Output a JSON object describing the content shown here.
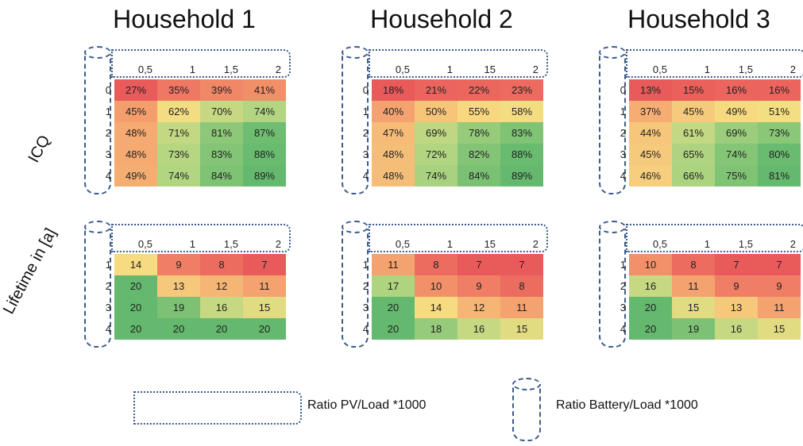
{
  "households": [
    {
      "title": "Household 1"
    },
    {
      "title": "Household 2"
    },
    {
      "title": "Household 3"
    }
  ],
  "row_titles": {
    "icq": "ICQ",
    "lifetime": "Lifetime in [a]"
  },
  "legend": {
    "pv_label": "Ratio PV/Load *1000",
    "battery_label": "Ratio Battery/Load *1000"
  },
  "chart_data": [
    {
      "type": "heatmap",
      "metric": "ICQ",
      "household": "Household 1",
      "columns": [
        "0,5",
        "1",
        "1,5",
        "2"
      ],
      "rows": [
        "0",
        "1",
        "2",
        "3",
        "4"
      ],
      "values": [
        [
          27,
          35,
          39,
          41
        ],
        [
          45,
          62,
          70,
          74
        ],
        [
          48,
          71,
          81,
          87
        ],
        [
          48,
          73,
          83,
          88
        ],
        [
          49,
          74,
          84,
          89
        ]
      ],
      "labels": [
        [
          "27%",
          "35%",
          "39%",
          "41%"
        ],
        [
          "45%",
          "62%",
          "70%",
          "74%"
        ],
        [
          "48%",
          "71%",
          "81%",
          "87%"
        ],
        [
          "48%",
          "73%",
          "83%",
          "88%"
        ],
        [
          "49%",
          "74%",
          "84%",
          "89%"
        ]
      ]
    },
    {
      "type": "heatmap",
      "metric": "ICQ",
      "household": "Household 2",
      "columns": [
        "0,5",
        "1",
        "15",
        "2"
      ],
      "rows": [
        "0",
        "1",
        "2",
        "3",
        "4"
      ],
      "values": [
        [
          18,
          21,
          22,
          23
        ],
        [
          40,
          50,
          55,
          58
        ],
        [
          47,
          69,
          78,
          83
        ],
        [
          48,
          72,
          82,
          88
        ],
        [
          48,
          74,
          84,
          89
        ]
      ],
      "labels": [
        [
          "18%",
          "21%",
          "22%",
          "23%"
        ],
        [
          "40%",
          "50%",
          "55%",
          "58%"
        ],
        [
          "47%",
          "69%",
          "78%",
          "83%"
        ],
        [
          "48%",
          "72%",
          "82%",
          "88%"
        ],
        [
          "48%",
          "74%",
          "84%",
          "89%"
        ]
      ]
    },
    {
      "type": "heatmap",
      "metric": "ICQ",
      "household": "Household 3",
      "columns": [
        "0,5",
        "1",
        "1,5",
        "2"
      ],
      "rows": [
        "0",
        "1",
        "2",
        "3",
        "4"
      ],
      "values": [
        [
          13,
          15,
          16,
          16
        ],
        [
          37,
          45,
          49,
          51
        ],
        [
          44,
          61,
          69,
          73
        ],
        [
          45,
          65,
          74,
          80
        ],
        [
          46,
          66,
          75,
          81
        ]
      ],
      "labels": [
        [
          "13%",
          "15%",
          "16%",
          "16%"
        ],
        [
          "37%",
          "45%",
          "49%",
          "51%"
        ],
        [
          "44%",
          "61%",
          "69%",
          "73%"
        ],
        [
          "45%",
          "65%",
          "74%",
          "80%"
        ],
        [
          "46%",
          "66%",
          "75%",
          "81%"
        ]
      ]
    },
    {
      "type": "heatmap",
      "metric": "Lifetime",
      "household": "Household 1",
      "columns": [
        "0,5",
        "1",
        "1,5",
        "2"
      ],
      "rows": [
        "1",
        "2",
        "3",
        "4"
      ],
      "values": [
        [
          14,
          9,
          8,
          7
        ],
        [
          20,
          13,
          12,
          11
        ],
        [
          20,
          19,
          16,
          15
        ],
        [
          20,
          20,
          20,
          20
        ]
      ],
      "labels": [
        [
          "14",
          "9",
          "8",
          "7"
        ],
        [
          "20",
          "13",
          "12",
          "11"
        ],
        [
          "20",
          "19",
          "16",
          "15"
        ],
        [
          "20",
          "20",
          "20",
          "20"
        ]
      ]
    },
    {
      "type": "heatmap",
      "metric": "Lifetime",
      "household": "Household 2",
      "columns": [
        "0,5",
        "1",
        "15",
        "2"
      ],
      "rows": [
        "1",
        "2",
        "3",
        "4"
      ],
      "values": [
        [
          11,
          8,
          7,
          7
        ],
        [
          17,
          10,
          9,
          8
        ],
        [
          20,
          14,
          12,
          11
        ],
        [
          20,
          18,
          16,
          15
        ]
      ],
      "labels": [
        [
          "11",
          "8",
          "7",
          "7"
        ],
        [
          "17",
          "10",
          "9",
          "8"
        ],
        [
          "20",
          "14",
          "12",
          "11"
        ],
        [
          "20",
          "18",
          "16",
          "15"
        ]
      ]
    },
    {
      "type": "heatmap",
      "metric": "Lifetime",
      "household": "Household 3",
      "columns": [
        "0,5",
        "1",
        "1,5",
        "2"
      ],
      "rows": [
        "1",
        "2",
        "3",
        "4"
      ],
      "values": [
        [
          10,
          8,
          7,
          7
        ],
        [
          16,
          11,
          9,
          9
        ],
        [
          20,
          15,
          13,
          11
        ],
        [
          20,
          19,
          16,
          15
        ]
      ],
      "labels": [
        [
          "10",
          "8",
          "7",
          "7"
        ],
        [
          "16",
          "11",
          "9",
          "9"
        ],
        [
          "20",
          "15",
          "13",
          "11"
        ],
        [
          "20",
          "19",
          "16",
          "15"
        ]
      ]
    }
  ]
}
